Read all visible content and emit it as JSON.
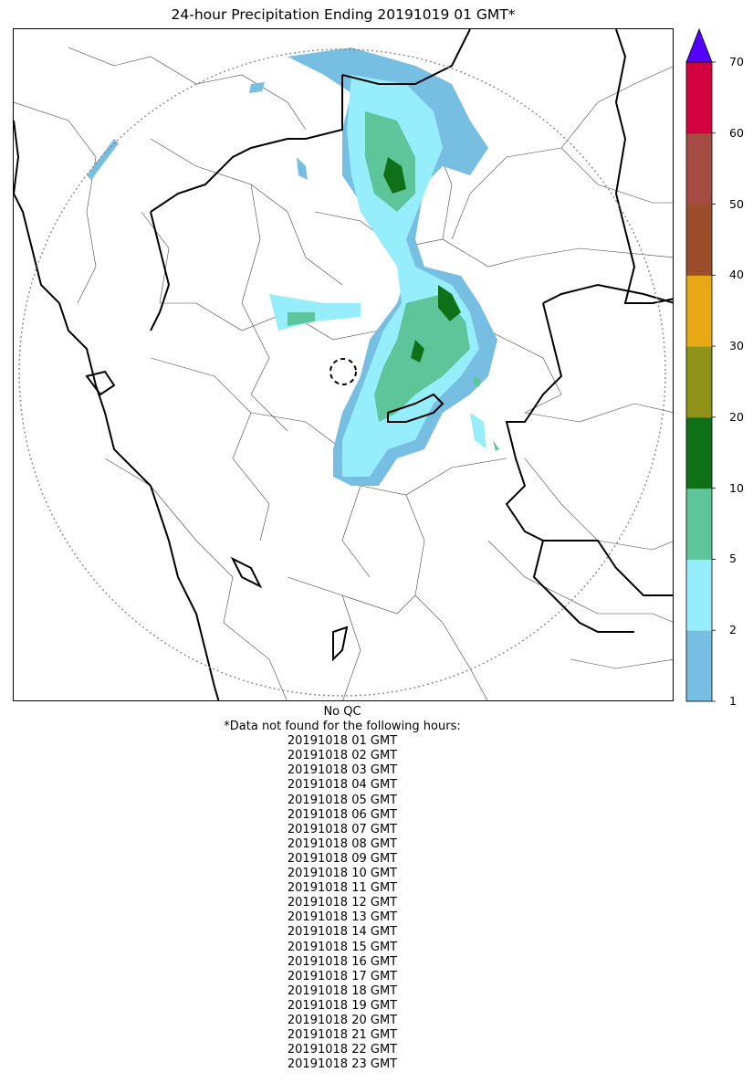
{
  "title": "24-hour Precipitation Ending 20191019 01 GMT*",
  "colorbar": {
    "ticks": [
      "1",
      "2",
      "5",
      "10",
      "20",
      "30",
      "40",
      "50",
      "60",
      "70"
    ],
    "bins": [
      {
        "from": 1,
        "to": 2,
        "color": "#77bee3"
      },
      {
        "from": 2,
        "to": 5,
        "color": "#96eefc"
      },
      {
        "from": 5,
        "to": 10,
        "color": "#5ec59a"
      },
      {
        "from": 10,
        "to": 20,
        "color": "#0e7117"
      },
      {
        "from": 20,
        "to": 30,
        "color": "#8d9319"
      },
      {
        "from": 30,
        "to": 40,
        "color": "#e8a916"
      },
      {
        "from": 40,
        "to": 50,
        "color": "#9a4e2a"
      },
      {
        "from": 50,
        "to": 60,
        "color": "#a44c43"
      },
      {
        "from": 60,
        "to": 70,
        "color": "#d3003f"
      }
    ],
    "overflow_color": "#5400ff"
  },
  "notes": {
    "qc": "No QC",
    "missing_header": "*Data not found for the following hours:",
    "missing_hours": [
      "20191018 01 GMT",
      "20191018 02 GMT",
      "20191018 03 GMT",
      "20191018 04 GMT",
      "20191018 05 GMT",
      "20191018 06 GMT",
      "20191018 07 GMT",
      "20191018 08 GMT",
      "20191018 09 GMT",
      "20191018 10 GMT",
      "20191018 11 GMT",
      "20191018 12 GMT",
      "20191018 13 GMT",
      "20191018 14 GMT",
      "20191018 15 GMT",
      "20191018 16 GMT",
      "20191018 17 GMT",
      "20191018 18 GMT",
      "20191018 19 GMT",
      "20191018 20 GMT",
      "20191018 21 GMT",
      "20191018 22 GMT",
      "20191018 23 GMT"
    ]
  }
}
